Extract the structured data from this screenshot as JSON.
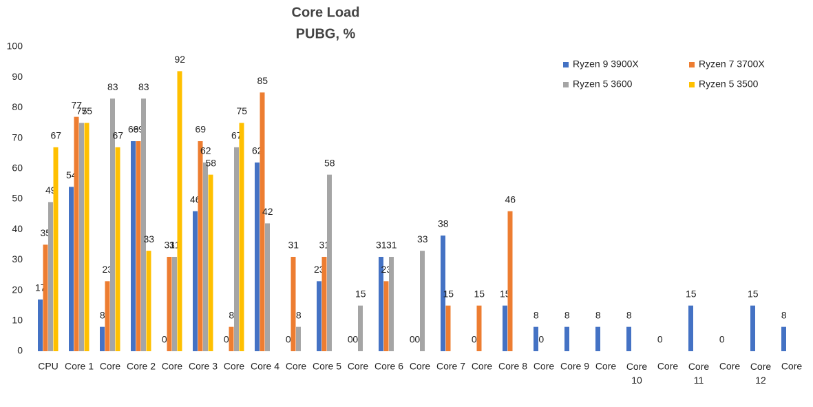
{
  "chart_data": {
    "type": "bar",
    "title": "Core Load",
    "subtitle": "PUBG, %",
    "categories": [
      "CPU",
      "Core 1",
      "Core",
      "Core 2",
      "Core",
      "Core 3",
      "Core",
      "Core 4",
      "Core",
      "Core 5",
      "Core",
      "Core 6",
      "Core",
      "Core 7",
      "Core",
      "Core 8",
      "Core",
      "Core 9",
      "Core",
      "Core 10",
      "Core",
      "Core 11",
      "Core",
      "Core 12",
      "Core"
    ],
    "series": [
      {
        "name": "Ryzen 9 3900X",
        "color": "#4472c4",
        "values": [
          17,
          54,
          8,
          69,
          0,
          46,
          0,
          62,
          0,
          23,
          0,
          31,
          0,
          38,
          0,
          15,
          8,
          8,
          8,
          8,
          0,
          15,
          0,
          15,
          8
        ]
      },
      {
        "name": "Ryzen 7 3700X",
        "color": "#ed7d31",
        "values": [
          35,
          77,
          23,
          69,
          31,
          69,
          8,
          85,
          31,
          31,
          0,
          23,
          0,
          15,
          15,
          46,
          0,
          null,
          null,
          null,
          null,
          null,
          null,
          null,
          null
        ]
      },
      {
        "name": "Ryzen 5 3600",
        "color": "#a5a5a5",
        "values": [
          49,
          75,
          83,
          83,
          31,
          62,
          67,
          42,
          8,
          58,
          15,
          31,
          33,
          null,
          null,
          null,
          null,
          null,
          null,
          null,
          null,
          null,
          null,
          null,
          null
        ]
      },
      {
        "name": "Ryzen 5 3500",
        "color": "#ffc000",
        "values": [
          67,
          75,
          67,
          33,
          92,
          58,
          75,
          null,
          null,
          null,
          null,
          null,
          null,
          null,
          null,
          null,
          null,
          null,
          null,
          null,
          null,
          null,
          null,
          null,
          null
        ]
      }
    ],
    "ylim": [
      0,
      100
    ],
    "yticks": [
      0,
      10,
      20,
      30,
      40,
      50,
      60,
      70,
      80,
      90,
      100
    ],
    "grid": false,
    "legend": "top-right"
  }
}
